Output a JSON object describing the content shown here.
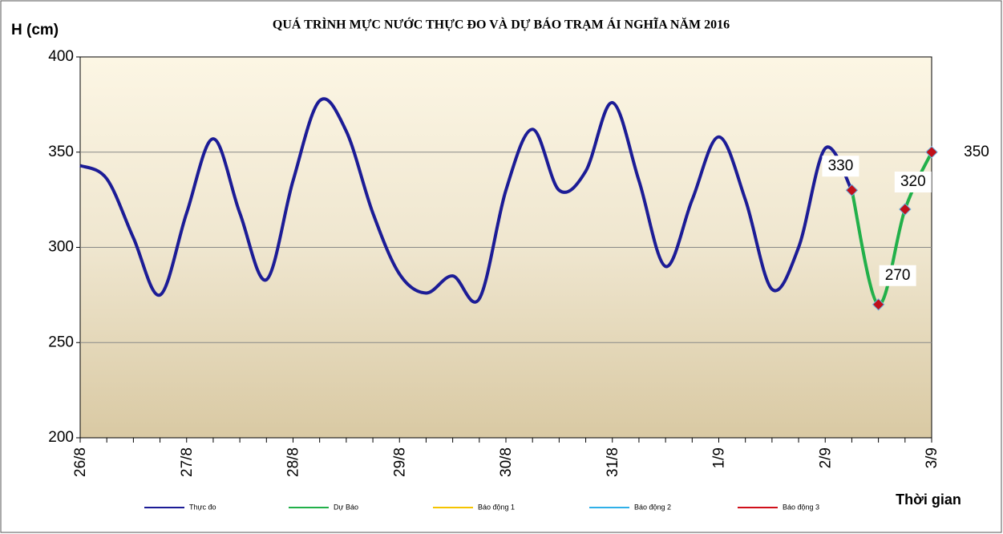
{
  "chart_data": {
    "type": "line",
    "title": "QUÁ TRÌNH MỰC NƯỚC THỰC ĐO VÀ DỰ BÁO TRẠM ÁI NGHĨA NĂM 2016",
    "y_label": "H (cm)",
    "x_label": "Thời gian",
    "categories": [
      "26/8",
      null,
      null,
      null,
      "27/8",
      null,
      null,
      null,
      "28/8",
      null,
      null,
      null,
      "29/8",
      null,
      null,
      null,
      "30/8",
      null,
      null,
      null,
      "31/8",
      null,
      null,
      null,
      "1/9",
      null,
      null,
      null,
      "2/9",
      null,
      null,
      null,
      "3/9"
    ],
    "ylim": [
      200,
      400
    ],
    "yticks": [
      200,
      250,
      300,
      350,
      400
    ],
    "grid": true,
    "series": [
      {
        "name": "Thực đo",
        "color": "#1c1c96",
        "values": [
          343,
          336,
          305,
          275,
          318,
          357,
          318,
          283,
          335,
          377,
          361,
          318,
          286,
          276,
          285,
          273,
          330,
          362,
          330,
          340,
          376,
          335,
          290,
          325,
          358,
          325,
          278,
          300,
          352,
          330,
          null,
          null,
          null
        ]
      },
      {
        "name": "Dự Báo",
        "color": "#22b04a",
        "marker_color": "#c0101a",
        "data_labels": true,
        "values": [
          null,
          null,
          null,
          null,
          null,
          null,
          null,
          null,
          null,
          null,
          null,
          null,
          null,
          null,
          null,
          null,
          null,
          null,
          null,
          null,
          null,
          null,
          null,
          null,
          null,
          null,
          null,
          null,
          null,
          330,
          270,
          320,
          350
        ]
      },
      {
        "name": "Báo động 1",
        "color": "#f5c400",
        "values": [
          null,
          null,
          null,
          null,
          null,
          null,
          null,
          null,
          null,
          null,
          null,
          null,
          null,
          null,
          null,
          null,
          null,
          null,
          null,
          null,
          null,
          null,
          null,
          null,
          null,
          null,
          null,
          null,
          null,
          null,
          null,
          null,
          null
        ]
      },
      {
        "name": "Báo động 2",
        "color": "#30b0e8",
        "values": [
          null,
          null,
          null,
          null,
          null,
          null,
          null,
          null,
          null,
          null,
          null,
          null,
          null,
          null,
          null,
          null,
          null,
          null,
          null,
          null,
          null,
          null,
          null,
          null,
          null,
          null,
          null,
          null,
          null,
          null,
          null,
          null,
          null
        ]
      },
      {
        "name": "Báo động 3",
        "color": "#d0101a",
        "values": [
          null,
          null,
          null,
          null,
          null,
          null,
          null,
          null,
          null,
          null,
          null,
          null,
          null,
          null,
          null,
          null,
          null,
          null,
          null,
          null,
          null,
          null,
          null,
          null,
          null,
          null,
          null,
          null,
          null,
          null,
          null,
          null,
          null
        ]
      }
    ]
  }
}
